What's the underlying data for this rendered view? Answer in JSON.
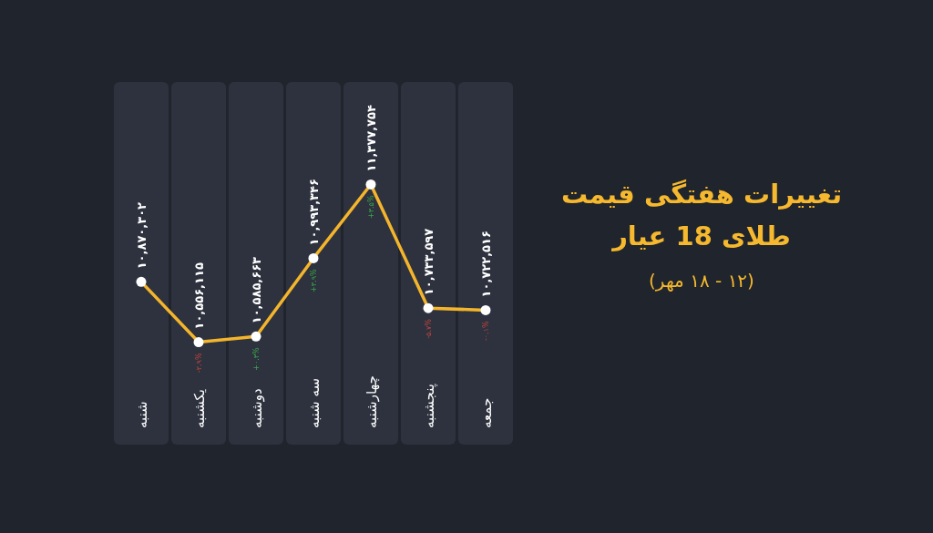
{
  "chart_data": {
    "type": "line",
    "title": "تغییرات هفتگی قیمت طلای 18 عیار",
    "subtitle": "(۱۲ - ۱۸ مهر)",
    "categories": [
      "شنبه",
      "یکشنبه",
      "دوشنبه",
      "سه شنبه",
      "چهارشنبه",
      "پنجشنبه",
      "جمعه"
    ],
    "series": [
      {
        "color": "#f4b52c",
        "values": [
          10870302,
          10556115,
          10585663,
          10993346,
          11377754,
          10733597,
          10722516
        ],
        "value_labels": [
          "۱۰,۸۷۰,۳۰۲",
          "۱۰,۵۵۶,۱۱۵",
          "۱۰,۵۸۵,۶۶۳",
          "۱۰,۹۹۳,۳۴۶",
          "۱۱,۳۷۷,۷۵۴",
          "۱۰,۷۳۳,۵۹۷",
          "۱۰,۷۲۲,۵۱۶"
        ]
      }
    ],
    "annotations": [
      {
        "text": "-۲.۹%",
        "x": "یکشنبه",
        "y": 10556115
      },
      {
        "text": "+۰.۳%",
        "x": "دوشنبه",
        "y": 10585663
      },
      {
        "text": "+۳.۹%",
        "x": "سه شنبه",
        "y": 10993346
      },
      {
        "text": "+۳.۵%",
        "x": "چهارشنبه",
        "y": 11377754
      },
      {
        "text": "-۵.۷%",
        "x": "پنجشنبه",
        "y": 10733597
      },
      {
        "text": "-۰.۱%",
        "x": "جمعه",
        "y": 10722516
      }
    ],
    "marker": "circle",
    "line_style": "solid"
  }
}
